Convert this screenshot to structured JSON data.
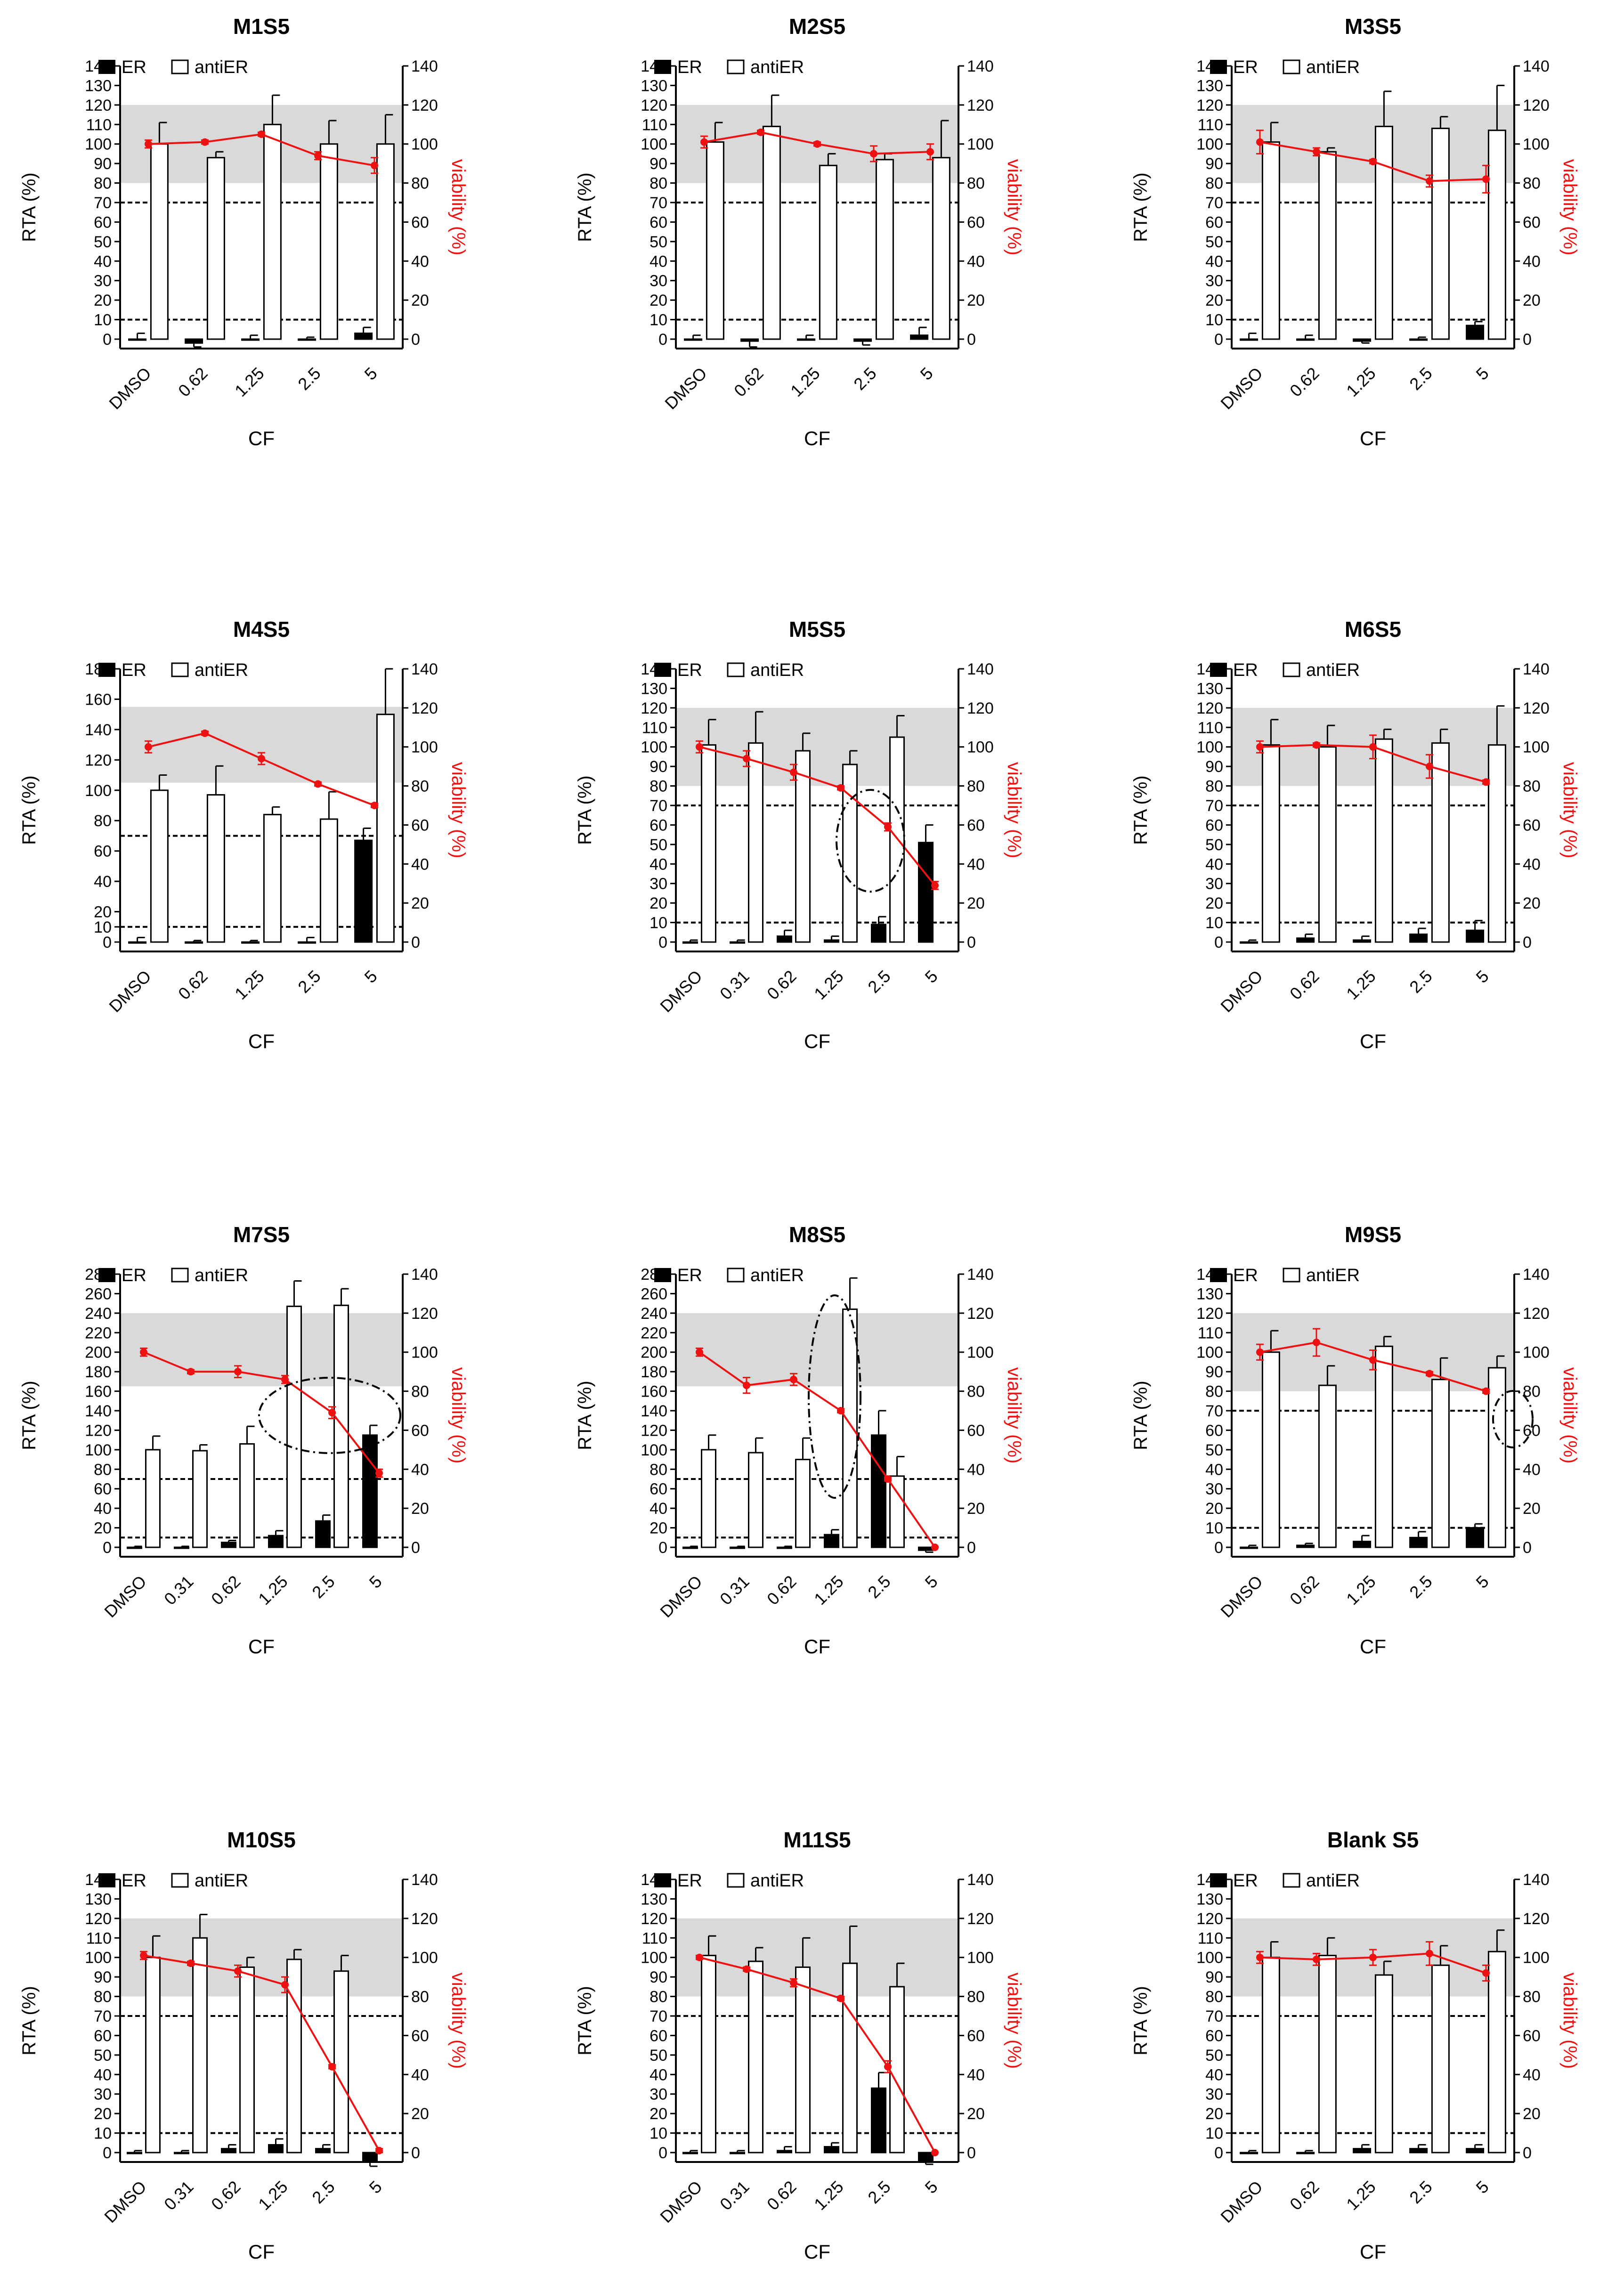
{
  "figure": {
    "legend_er": "ER",
    "legend_antier": "antiER",
    "xlabel": "CF",
    "ylabel_left": "RTA (%)",
    "ylabel_left_alt": "RTA  (%)",
    "ylabel_right": "viability (%)",
    "viability_color": "#ee1111",
    "band_color": "#d9d9d9",
    "er_color": "#000000",
    "antier_color": "#ffffff"
  },
  "chart_data": [
    {
      "type": "bar",
      "title": "M1S5",
      "categories": [
        "DMSO",
        "0.62",
        "1.25",
        "2.5",
        "5"
      ],
      "ylim": [
        0,
        140
      ],
      "yticks": [
        0,
        10,
        20,
        30,
        40,
        50,
        60,
        70,
        80,
        90,
        100,
        110,
        120,
        130,
        140
      ],
      "ylim_right": [
        0,
        140
      ],
      "band": [
        80,
        120
      ],
      "thresholds": [
        70,
        10
      ],
      "series": [
        {
          "name": "ER",
          "values": [
            0,
            -2,
            0,
            0,
            3
          ],
          "errors": [
            3,
            2,
            2,
            1,
            3
          ]
        },
        {
          "name": "antiER",
          "values": [
            100,
            93,
            110,
            100,
            100
          ],
          "errors": [
            11,
            3,
            15,
            12,
            15
          ]
        },
        {
          "name": "viability",
          "values": [
            100,
            101,
            105,
            94,
            89
          ],
          "errors": [
            2,
            1,
            1,
            2,
            4
          ]
        }
      ]
    },
    {
      "type": "bar",
      "title": "M2S5",
      "categories": [
        "DMSO",
        "0.62",
        "1.25",
        "2.5",
        "5"
      ],
      "ylim": [
        0,
        140
      ],
      "yticks": [
        0,
        10,
        20,
        30,
        40,
        50,
        60,
        70,
        80,
        90,
        100,
        110,
        120,
        130,
        140
      ],
      "ylim_right": [
        0,
        140
      ],
      "band": [
        80,
        120
      ],
      "thresholds": [
        70,
        10
      ],
      "series": [
        {
          "name": "ER",
          "values": [
            0,
            -1,
            0,
            -1,
            2
          ],
          "errors": [
            2,
            3,
            2,
            2,
            4
          ]
        },
        {
          "name": "antiER",
          "values": [
            101,
            109,
            89,
            92,
            93
          ],
          "errors": [
            10,
            16,
            6,
            3,
            19
          ]
        },
        {
          "name": "viability",
          "values": [
            101,
            106,
            100,
            95,
            96
          ],
          "errors": [
            3,
            1,
            1,
            4,
            4
          ]
        }
      ]
    },
    {
      "type": "bar",
      "title": "M3S5",
      "categories": [
        "DMSO",
        "0.62",
        "1.25",
        "2.5",
        "5"
      ],
      "ylim": [
        0,
        140
      ],
      "yticks": [
        0,
        10,
        20,
        30,
        40,
        50,
        60,
        70,
        80,
        90,
        100,
        110,
        120,
        130,
        140
      ],
      "ylim_right": [
        0,
        140
      ],
      "band": [
        80,
        120
      ],
      "thresholds": [
        70,
        10
      ],
      "series": [
        {
          "name": "ER",
          "values": [
            0,
            0,
            -1,
            0,
            7
          ],
          "errors": [
            3,
            2,
            1,
            1,
            2
          ]
        },
        {
          "name": "antiER",
          "values": [
            101,
            96,
            109,
            108,
            107
          ],
          "errors": [
            10,
            2,
            18,
            6,
            23
          ]
        },
        {
          "name": "viability",
          "values": [
            101,
            96,
            91,
            81,
            82
          ],
          "errors": [
            6,
            2,
            1,
            3,
            7
          ]
        }
      ]
    },
    {
      "type": "bar",
      "title": "M4S5",
      "categories": [
        "DMSO",
        "0.62",
        "1.25",
        "2.5",
        "5"
      ],
      "ylim": [
        0,
        180
      ],
      "yticks": [
        0,
        10,
        20,
        40,
        60,
        80,
        100,
        120,
        140,
        160,
        180
      ],
      "ylim_right": [
        0,
        140
      ],
      "band": [
        105,
        155
      ],
      "thresholds": [
        70,
        10
      ],
      "series": [
        {
          "name": "ER",
          "values": [
            0,
            0,
            0,
            0,
            67
          ],
          "errors": [
            3,
            1,
            1,
            3,
            8
          ]
        },
        {
          "name": "antiER",
          "values": [
            100,
            97,
            84,
            81,
            150
          ],
          "errors": [
            10,
            19,
            5,
            18,
            30
          ]
        },
        {
          "name": "viability",
          "values": [
            100,
            107,
            94,
            81,
            70
          ],
          "errors": [
            3,
            1,
            3,
            1,
            1
          ]
        }
      ]
    },
    {
      "type": "bar",
      "title": "M5S5",
      "categories": [
        "DMSO",
        "0.31",
        "0.62",
        "1.25",
        "2.5",
        "5"
      ],
      "ylim": [
        0,
        140
      ],
      "yticks": [
        0,
        10,
        20,
        30,
        40,
        50,
        60,
        70,
        80,
        90,
        100,
        110,
        120,
        130,
        140
      ],
      "ylim_right": [
        0,
        140
      ],
      "band": [
        80,
        120
      ],
      "thresholds": [
        70,
        10
      ],
      "series": [
        {
          "name": "ER",
          "values": [
            0,
            0,
            3,
            1,
            9,
            51
          ],
          "errors": [
            1,
            1,
            3,
            2,
            4,
            9
          ]
        },
        {
          "name": "antiER",
          "values": [
            101,
            102,
            98,
            91,
            105,
            0
          ],
          "errors": [
            13,
            16,
            9,
            7,
            11,
            0
          ]
        },
        {
          "name": "viability",
          "values": [
            100,
            94,
            87,
            79,
            59,
            29
          ],
          "errors": [
            3,
            4,
            4,
            1,
            2,
            2
          ]
        }
      ]
    },
    {
      "type": "bar",
      "title": "M6S5",
      "categories": [
        "DMSO",
        "0.62",
        "1.25",
        "2.5",
        "5"
      ],
      "ylim": [
        0,
        140
      ],
      "yticks": [
        0,
        10,
        20,
        30,
        40,
        50,
        60,
        70,
        80,
        90,
        100,
        110,
        120,
        130,
        140
      ],
      "ylim_right": [
        0,
        140
      ],
      "band": [
        80,
        120
      ],
      "thresholds": [
        70,
        10
      ],
      "series": [
        {
          "name": "ER",
          "values": [
            0,
            2,
            1,
            4,
            6
          ],
          "errors": [
            1,
            2,
            2,
            3,
            5
          ]
        },
        {
          "name": "antiER",
          "values": [
            101,
            100,
            104,
            102,
            101
          ],
          "errors": [
            13,
            11,
            5,
            7,
            20
          ]
        },
        {
          "name": "viability",
          "values": [
            100,
            101,
            100,
            90,
            82
          ],
          "errors": [
            3,
            1,
            6,
            6,
            1
          ]
        }
      ]
    },
    {
      "type": "bar",
      "title": "M7S5",
      "categories": [
        "DMSO",
        "0.31",
        "0.62",
        "1.25",
        "2.5",
        "5"
      ],
      "ylim": [
        0,
        280
      ],
      "yticks": [
        0,
        20,
        40,
        60,
        80,
        100,
        120,
        140,
        160,
        180,
        200,
        220,
        240,
        260,
        280
      ],
      "ylim_right": [
        0,
        140
      ],
      "band": [
        165,
        240
      ],
      "thresholds": [
        70,
        10
      ],
      "series": [
        {
          "name": "ER",
          "values": [
            0,
            0,
            5,
            12,
            27,
            115
          ],
          "errors": [
            1,
            1,
            2,
            5,
            6,
            10
          ]
        },
        {
          "name": "antiER",
          "values": [
            100,
            99,
            106,
            247,
            248,
            0
          ],
          "errors": [
            14,
            6,
            18,
            26,
            17,
            0
          ]
        },
        {
          "name": "viability",
          "values": [
            100,
            90,
            90,
            86,
            69,
            38
          ],
          "errors": [
            2,
            1,
            3,
            2,
            3,
            2
          ]
        }
      ]
    },
    {
      "type": "bar",
      "title": "M8S5",
      "categories": [
        "DMSO",
        "0.31",
        "0.62",
        "1.25",
        "2.5",
        "5"
      ],
      "ylim": [
        0,
        280
      ],
      "yticks": [
        0,
        20,
        40,
        60,
        80,
        100,
        120,
        140,
        160,
        180,
        200,
        220,
        240,
        260,
        280
      ],
      "ylim_right": [
        0,
        140
      ],
      "band": [
        165,
        240
      ],
      "thresholds": [
        70,
        10
      ],
      "series": [
        {
          "name": "ER",
          "values": [
            0,
            0,
            0,
            13,
            115,
            -3
          ],
          "errors": [
            1,
            1,
            1,
            5,
            25,
            2
          ]
        },
        {
          "name": "antiER",
          "values": [
            100,
            97,
            90,
            244,
            73,
            0
          ],
          "errors": [
            15,
            15,
            22,
            32,
            20,
            0
          ]
        },
        {
          "name": "viability",
          "values": [
            100,
            83,
            86,
            70,
            35,
            0
          ],
          "errors": [
            2,
            4,
            3,
            1,
            1,
            0
          ]
        }
      ]
    },
    {
      "type": "bar",
      "title": "M9S5",
      "categories": [
        "DMSO",
        "0.62",
        "1.25",
        "2.5",
        "5"
      ],
      "ylim": [
        0,
        140
      ],
      "yticks": [
        0,
        10,
        20,
        30,
        40,
        50,
        60,
        70,
        80,
        90,
        100,
        110,
        120,
        130,
        140
      ],
      "ylim_right": [
        0,
        140
      ],
      "band": [
        80,
        120
      ],
      "thresholds": [
        70,
        10
      ],
      "series": [
        {
          "name": "ER",
          "values": [
            0,
            1,
            3,
            5,
            10
          ],
          "errors": [
            1,
            1,
            3,
            3,
            2
          ]
        },
        {
          "name": "antiER",
          "values": [
            100,
            83,
            103,
            86,
            92
          ],
          "errors": [
            11,
            10,
            5,
            11,
            6
          ]
        },
        {
          "name": "viability",
          "values": [
            100,
            105,
            96,
            89,
            80
          ],
          "errors": [
            4,
            7,
            5,
            1,
            1
          ]
        }
      ]
    },
    {
      "type": "bar",
      "title": "M10S5",
      "categories": [
        "DMSO",
        "0.31",
        "0.62",
        "1.25",
        "2.5",
        "5"
      ],
      "ylim": [
        0,
        140
      ],
      "yticks": [
        0,
        10,
        20,
        30,
        40,
        50,
        60,
        70,
        80,
        90,
        100,
        110,
        120,
        130,
        140
      ],
      "ylim_right": [
        0,
        140
      ],
      "band": [
        80,
        120
      ],
      "thresholds": [
        70,
        10
      ],
      "series": [
        {
          "name": "ER",
          "values": [
            0,
            0,
            2,
            4,
            2,
            -4
          ],
          "errors": [
            1,
            1,
            2,
            3,
            2,
            3
          ]
        },
        {
          "name": "antiER",
          "values": [
            100,
            110,
            95,
            99,
            93,
            0
          ],
          "errors": [
            11,
            12,
            5,
            5,
            8,
            0
          ]
        },
        {
          "name": "viability",
          "values": [
            101,
            97,
            93,
            86,
            44,
            1
          ],
          "errors": [
            2,
            1,
            3,
            4,
            1,
            1
          ]
        }
      ]
    },
    {
      "type": "bar",
      "title": "M11S5",
      "categories": [
        "DMSO",
        "0.31",
        "0.62",
        "1.25",
        "2.5",
        "5"
      ],
      "ylim": [
        0,
        140
      ],
      "yticks": [
        0,
        10,
        20,
        30,
        40,
        50,
        60,
        70,
        80,
        90,
        100,
        110,
        120,
        130,
        140
      ],
      "ylim_right": [
        0,
        140
      ],
      "band": [
        80,
        120
      ],
      "thresholds": [
        70,
        10
      ],
      "series": [
        {
          "name": "ER",
          "values": [
            0,
            0,
            1,
            3,
            33,
            -4
          ],
          "errors": [
            1,
            1,
            2,
            2,
            8,
            2
          ]
        },
        {
          "name": "antiER",
          "values": [
            101,
            98,
            95,
            97,
            85,
            0
          ],
          "errors": [
            10,
            7,
            15,
            19,
            12,
            0
          ]
        },
        {
          "name": "viability",
          "values": [
            100,
            94,
            87,
            79,
            44,
            0
          ],
          "errors": [
            1,
            1,
            2,
            1,
            3,
            0
          ]
        }
      ]
    },
    {
      "type": "bar",
      "title": "Blank S5",
      "categories": [
        "DMSO",
        "0.62",
        "1.25",
        "2.5",
        "5"
      ],
      "ylim": [
        0,
        140
      ],
      "yticks": [
        0,
        10,
        20,
        30,
        40,
        50,
        60,
        70,
        80,
        90,
        100,
        110,
        120,
        130,
        140
      ],
      "ylim_right": [
        0,
        140
      ],
      "band": [
        80,
        120
      ],
      "thresholds": [
        70,
        10
      ],
      "series": [
        {
          "name": "ER",
          "values": [
            0,
            0,
            2,
            2,
            2
          ],
          "errors": [
            1,
            1,
            2,
            2,
            2
          ]
        },
        {
          "name": "antiER",
          "values": [
            100,
            101,
            91,
            96,
            103
          ],
          "errors": [
            8,
            9,
            7,
            10,
            11
          ]
        },
        {
          "name": "viability",
          "values": [
            100,
            99,
            100,
            102,
            92
          ],
          "errors": [
            3,
            3,
            4,
            6,
            4
          ]
        }
      ]
    }
  ]
}
